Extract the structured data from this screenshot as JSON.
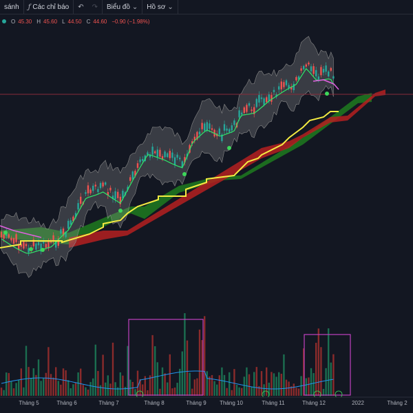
{
  "toolbar": {
    "compare_label": "sánh",
    "indicators_label": "Các chỉ báo",
    "undo_icon": "undo-icon",
    "chart_label": "Biểu đồ",
    "profile_label": "Hồ sơ"
  },
  "legend": {
    "open_key": "O",
    "open": "45.30",
    "high_key": "H",
    "high": "45.60",
    "low_key": "L",
    "low": "44.50",
    "close_key": "C",
    "close": "44.60",
    "change": "−0.90 (−1.98%)"
  },
  "colors": {
    "background": "#131722",
    "up": "#26a69a",
    "down": "#ef5350",
    "ma_line": "#2ee86a",
    "bands": "#9e9e9e",
    "kijun": "#f5ec42",
    "cloud_bull": "#1e7a1e",
    "cloud_bear": "#b52020",
    "highlight_box": "#c040c0",
    "volume_ma": "#2196f3"
  },
  "chart_data": {
    "type": "candlestick",
    "xaxis_labels": [
      "Tháng 5",
      "Tháng 6",
      "Tháng 7",
      "Tháng 8",
      "Tháng 9",
      "Tháng 10",
      "Tháng 11",
      "Tháng 12",
      "2022",
      "Tháng 2"
    ],
    "last_bar": {
      "open": 45.3,
      "high": 45.6,
      "low": 44.5,
      "close": 44.6
    },
    "change": -0.9,
    "change_percent": -1.98,
    "indicators": [
      "Bollinger Bands",
      "Moving Average",
      "Ichimoku Cloud",
      "Volume"
    ]
  }
}
